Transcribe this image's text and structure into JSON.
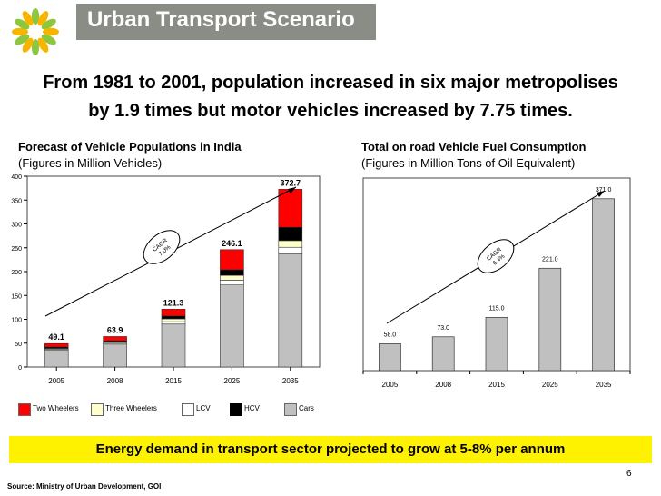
{
  "header": {
    "title": "Urban Transport Scenario"
  },
  "headline": {
    "line1": "From 1981 to 2001, population increased in six major metropolises",
    "line2": "by 1.9 times but motor vehicles increased by 7.75 times."
  },
  "colors": {
    "title_bg": "#8a8c86",
    "banner_bg": "#fff200",
    "two_wheelers": "#ff0000",
    "three_wheelers": "#ffffcc",
    "lcv": "#ffffff",
    "hcv": "#000000",
    "cars": "#c0c0c0",
    "logo_green": "#8dc63f",
    "logo_yellow": "#f7b500"
  },
  "banner": "Energy demand in transport sector projected to grow at 5-8% per annum",
  "page_number": "6",
  "source": "Source: Ministry of Urban Development, GOI",
  "legend": [
    {
      "label": "Two Wheelers",
      "color_key": "two_wheelers"
    },
    {
      "label": "Three Wheelers",
      "color_key": "three_wheelers"
    },
    {
      "label": "LCV",
      "color_key": "lcv"
    },
    {
      "label": "HCV",
      "color_key": "hcv"
    },
    {
      "label": "Cars",
      "color_key": "cars"
    }
  ],
  "chart_data": [
    {
      "type": "bar",
      "stacked": true,
      "title": "Forecast of Vehicle Populations in India",
      "subtitle": "(Figures in Million Vehicles)",
      "categories": [
        "2005",
        "2008",
        "2015",
        "2025",
        "2035"
      ],
      "totals": [
        49.1,
        63.9,
        121.3,
        246.1,
        372.7
      ],
      "total_labels": [
        "49.1",
        "63.9",
        "121.3",
        "246.1",
        "372.7"
      ],
      "series": [
        {
          "name": "Cars",
          "values": [
            35,
            48,
            90,
            172,
            237
          ]
        },
        {
          "name": "LCV",
          "values": [
            2,
            2,
            5,
            10,
            14
          ]
        },
        {
          "name": "Three Wheelers",
          "values": [
            2,
            2,
            6,
            10,
            14
          ]
        },
        {
          "name": "HCV",
          "values": [
            3,
            3,
            6,
            12,
            28
          ]
        },
        {
          "name": "Two Wheelers",
          "values": [
            7.1,
            8.9,
            14.3,
            42.1,
            79.7
          ]
        }
      ],
      "ylim": [
        0,
        400
      ],
      "yticks": [
        "0",
        "50",
        "100",
        "150",
        "200",
        "250",
        "300",
        "350",
        "400"
      ],
      "annotation": {
        "line1": "CAGR",
        "line2": "7.0%"
      }
    },
    {
      "type": "bar",
      "title": "Total on road Vehicle Fuel Consumption",
      "subtitle": "(Figures in Million Tons of Oil Equivalent)",
      "categories": [
        "2005",
        "2008",
        "2015",
        "2025",
        "2035"
      ],
      "values": [
        58.0,
        73.0,
        115.0,
        221.0,
        371.0
      ],
      "value_labels": [
        "58.0",
        "73.0",
        "115.0",
        "221.0",
        "371.0"
      ],
      "ylim": [
        0,
        400
      ],
      "annotation": {
        "line1": "CAGR",
        "line2": "6.4%"
      }
    }
  ]
}
